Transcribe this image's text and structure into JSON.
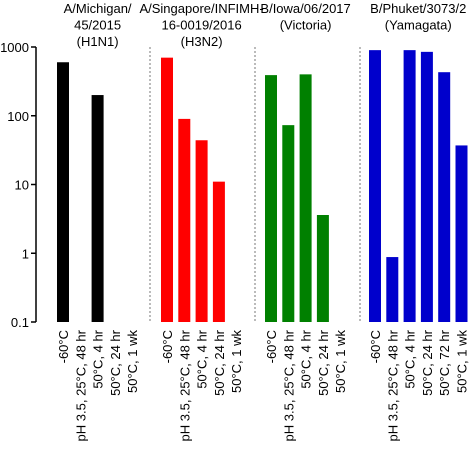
{
  "chart_data": {
    "type": "bar",
    "yscale": "log",
    "ylim": [
      0.1,
      1000
    ],
    "yticks": [
      1000,
      100,
      10,
      1,
      0.1
    ],
    "groups": [
      {
        "title": [
          "A/Michigan/",
          "45/2015",
          "(H1N1)"
        ],
        "color": "#000000",
        "categories": [
          "-60°C",
          "pH 3.5, 25°C, 48 hr",
          "50°C, 4 hr",
          "50°C, 24 hr",
          "50°C, 1 wk"
        ],
        "values": [
          600,
          null,
          200,
          null,
          null
        ]
      },
      {
        "title": [
          "A/Singapore/INFIMH-",
          "16-0019/2016",
          "(H3N2)"
        ],
        "color": "#ff0000",
        "categories": [
          "-60°C",
          "pH 3.5, 25°C, 48 hr",
          "50°C, 4 hr",
          "50°C, 24 hr",
          "50°C, 1 wk"
        ],
        "values": [
          700,
          90,
          44,
          11,
          null
        ]
      },
      {
        "title": [
          "B/Iowa/06/2017",
          "(Victoria)"
        ],
        "color": "#008000",
        "categories": [
          "-60°C",
          "pH 3.5, 25°C, 48 hr",
          "50°C, 4 hr",
          "50°C, 24 hr",
          "50°C, 1 wk"
        ],
        "values": [
          390,
          73,
          400,
          3.6,
          null
        ]
      },
      {
        "title": [
          "B/Phuket/3073/2",
          "(Yamagata)"
        ],
        "color": "#0000cc",
        "categories": [
          "-60°C",
          "pH 3.5, 25°C, 48 hr",
          "50°C, 4 hr",
          "50°C, 24 hr",
          "50°C, 72 hr",
          "50°C, 1 wk"
        ],
        "values": [
          900,
          0.88,
          900,
          850,
          430,
          37
        ]
      }
    ]
  }
}
